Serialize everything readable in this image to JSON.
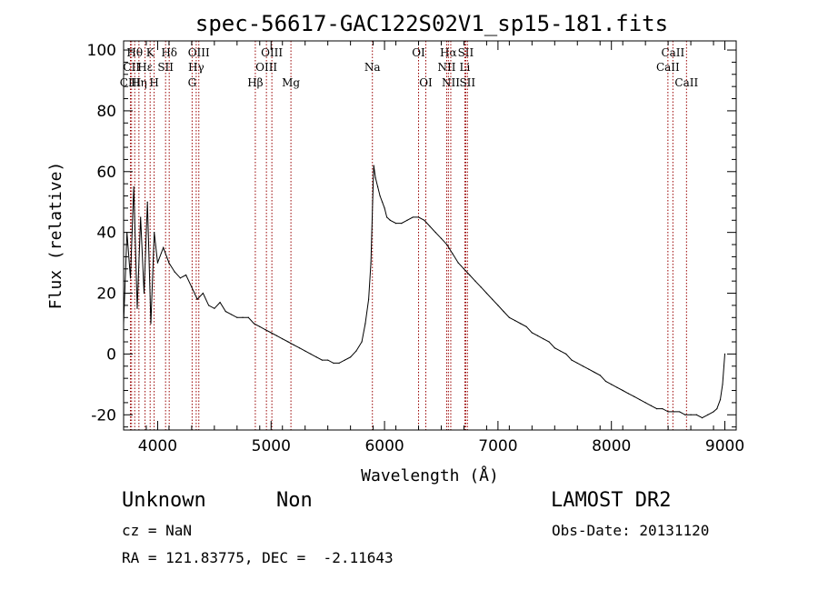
{
  "chart_data": {
    "type": "line",
    "title": "spec-56617-GAC122S02V1_sp15-181.fits",
    "xlabel": "Wavelength (Å)",
    "ylabel": "Flux (relative)",
    "xlim": [
      3700,
      9100
    ],
    "ylim": [
      -25,
      103
    ],
    "x_ticks": [
      4000,
      5000,
      6000,
      7000,
      8000,
      9000
    ],
    "y_ticks": [
      -20,
      0,
      20,
      40,
      60,
      80,
      100
    ],
    "grid": false,
    "line_color": "#000000",
    "marker_color": "#990000",
    "series": [
      {
        "x": [
          3700,
          3730,
          3760,
          3790,
          3820,
          3850,
          3880,
          3910,
          3940,
          3970,
          4000,
          4050,
          4100,
          4150,
          4200,
          4250,
          4300,
          4350,
          4400,
          4450,
          4500,
          4550,
          4600,
          4650,
          4700,
          4750,
          4800,
          4850,
          4900,
          4950,
          5000,
          5050,
          5100,
          5150,
          5200,
          5250,
          5300,
          5350,
          5400,
          5450,
          5500,
          5550,
          5600,
          5650,
          5700,
          5750,
          5800,
          5830,
          5860,
          5880,
          5895,
          5905,
          5920,
          5940,
          5960,
          5980,
          6000,
          6020,
          6050,
          6100,
          6150,
          6200,
          6250,
          6300,
          6350,
          6400,
          6450,
          6500,
          6550,
          6600,
          6650,
          6700,
          6750,
          6800,
          6850,
          6900,
          6950,
          7000,
          7050,
          7100,
          7150,
          7200,
          7250,
          7300,
          7350,
          7400,
          7450,
          7500,
          7550,
          7600,
          7650,
          7700,
          7750,
          7800,
          7850,
          7900,
          7950,
          8000,
          8050,
          8100,
          8150,
          8200,
          8250,
          8300,
          8350,
          8400,
          8450,
          8500,
          8550,
          8600,
          8650,
          8700,
          8750,
          8800,
          8850,
          8900,
          8930,
          8960,
          8980,
          9000
        ],
        "y": [
          10,
          40,
          25,
          55,
          15,
          45,
          20,
          50,
          10,
          40,
          30,
          35,
          30,
          27,
          25,
          26,
          22,
          18,
          20,
          16,
          15,
          17,
          14,
          13,
          12,
          12,
          12,
          10,
          9,
          8,
          7,
          6,
          5,
          4,
          3,
          2,
          1,
          0,
          -1,
          -2,
          -2,
          -3,
          -3,
          -2,
          -1,
          1,
          4,
          10,
          18,
          30,
          50,
          62,
          58,
          55,
          52,
          50,
          48,
          45,
          44,
          43,
          43,
          44,
          45,
          45,
          44,
          42,
          40,
          38,
          36,
          33,
          30,
          28,
          26,
          24,
          22,
          20,
          18,
          16,
          14,
          12,
          11,
          10,
          9,
          7,
          6,
          5,
          4,
          2,
          1,
          0,
          -2,
          -3,
          -4,
          -5,
          -6,
          -7,
          -9,
          -10,
          -11,
          -12,
          -13,
          -14,
          -15,
          -16,
          -17,
          -18,
          -18,
          -19,
          -19,
          -19,
          -20,
          -20,
          -20,
          -21,
          -20,
          -19,
          -18,
          -15,
          -10,
          0
        ]
      }
    ],
    "spectral_lines": [
      {
        "label": "Hθ",
        "x": 3798,
        "row": 1
      },
      {
        "label": "CII",
        "x": 3770,
        "row": 2
      },
      {
        "label": "CIII",
        "x": 3760,
        "row": 3
      },
      {
        "label": "Hη",
        "x": 3835,
        "row": 3
      },
      {
        "label": "K",
        "x": 3934,
        "row": 1
      },
      {
        "label": "Hε",
        "x": 3889,
        "row": 2
      },
      {
        "label": "H",
        "x": 3969,
        "row": 3
      },
      {
        "label": "Hδ",
        "x": 4102,
        "row": 1
      },
      {
        "label": "SII",
        "x": 4070,
        "row": 2
      },
      {
        "label": "OIII",
        "x": 4363,
        "row": 1
      },
      {
        "label": "Hγ",
        "x": 4340,
        "row": 2
      },
      {
        "label": "G",
        "x": 4304,
        "row": 3
      },
      {
        "label": "OIII",
        "x": 5007,
        "row": 1
      },
      {
        "label": "OIII",
        "x": 4959,
        "row": 2
      },
      {
        "label": "Hβ",
        "x": 4861,
        "row": 3
      },
      {
        "label": "Mg",
        "x": 5175,
        "row": 3
      },
      {
        "label": "Na",
        "x": 5893,
        "row": 2
      },
      {
        "label": "OI",
        "x": 6300,
        "row": 1
      },
      {
        "label": "OI",
        "x": 6364,
        "row": 3
      },
      {
        "label": "Hα",
        "x": 6563,
        "row": 1
      },
      {
        "label": "SII",
        "x": 6716,
        "row": 1
      },
      {
        "label": "NII",
        "x": 6548,
        "row": 2
      },
      {
        "label": "Li",
        "x": 6708,
        "row": 2
      },
      {
        "label": "NII",
        "x": 6584,
        "row": 3
      },
      {
        "label": "SII",
        "x": 6731,
        "row": 3
      },
      {
        "label": "CaII",
        "x": 8542,
        "row": 1
      },
      {
        "label": "CaII",
        "x": 8498,
        "row": 2
      },
      {
        "label": "CaII",
        "x": 8662,
        "row": 3
      }
    ]
  },
  "info": {
    "class_label": "Unknown",
    "subclass_label": "Non",
    "survey": "LAMOST DR2",
    "cz": "cz = NaN",
    "obs_date": "Obs-Date: 20131120",
    "coords": "RA = 121.83775, DEC =  -2.11643"
  }
}
